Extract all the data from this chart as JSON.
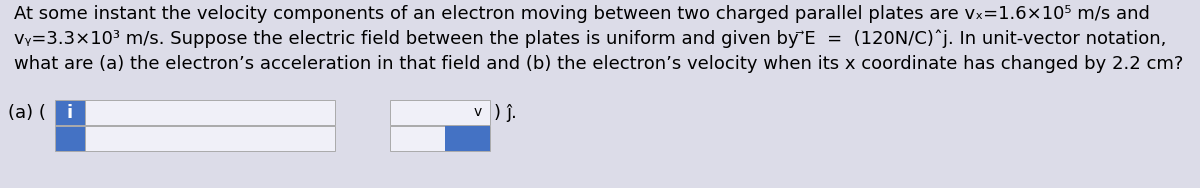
{
  "bg_color": "#dcdce8",
  "line1": "At some instant the velocity components of an electron moving between two charged parallel plates are vₓ=1.6×10⁵ m/s and",
  "line2": "vᵧ=3.3×10³ m/s. Suppose the electric field between the plates is uniform and given by ⃗E  =  (120N/C)ˆj. In unit-vector notation,",
  "line3": "what are (a) the electron’s acceleration in that field and (b) the electron’s velocity when its x coordinate has changed by 2.2 cm?",
  "label_a": "(a) (",
  "blue_box_label": "i",
  "dropdown_arrow": "v",
  "close_paren": ")",
  "jhat": "ĵ.",
  "blue_color": "#4472c4",
  "white_box_color": "#f0f0f8",
  "border_color": "#aaaaaa",
  "font_size": 13.0
}
